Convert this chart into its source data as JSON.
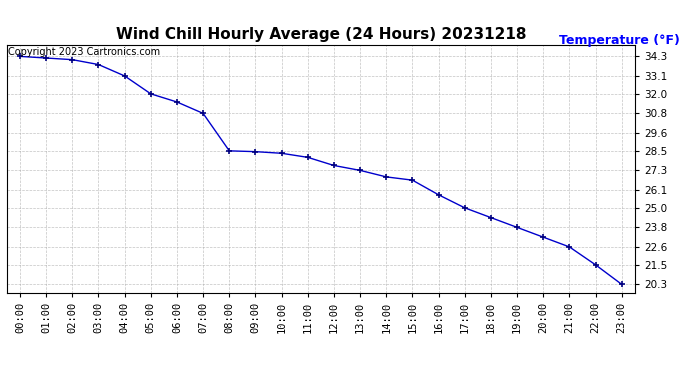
{
  "title": "Wind Chill Hourly Average (24 Hours) 20231218",
  "ylabel": "Temperature (°F)",
  "background_color": "#ffffff",
  "line_color": "#0000cc",
  "marker_color": "#000080",
  "copyright_text": "Copyright 2023 Cartronics.com",
  "x_labels": [
    "00:00",
    "01:00",
    "02:00",
    "03:00",
    "04:00",
    "05:00",
    "06:00",
    "07:00",
    "08:00",
    "09:00",
    "10:00",
    "11:00",
    "12:00",
    "13:00",
    "14:00",
    "15:00",
    "16:00",
    "17:00",
    "18:00",
    "19:00",
    "20:00",
    "21:00",
    "22:00",
    "23:00"
  ],
  "y_values": [
    34.3,
    34.2,
    34.1,
    33.8,
    33.1,
    32.0,
    31.5,
    30.8,
    28.5,
    28.45,
    28.35,
    28.1,
    27.6,
    27.3,
    26.9,
    26.7,
    25.8,
    25.0,
    24.4,
    23.8,
    23.2,
    22.6,
    21.5,
    20.3
  ],
  "yticks": [
    20.3,
    21.5,
    22.6,
    23.8,
    25.0,
    26.1,
    27.3,
    28.5,
    29.6,
    30.8,
    32.0,
    33.1,
    34.3
  ],
  "ylim_min": 19.8,
  "ylim_max": 35.0,
  "title_fontsize": 11,
  "tick_fontsize": 7.5,
  "ylabel_fontsize": 9,
  "copyright_fontsize": 7
}
